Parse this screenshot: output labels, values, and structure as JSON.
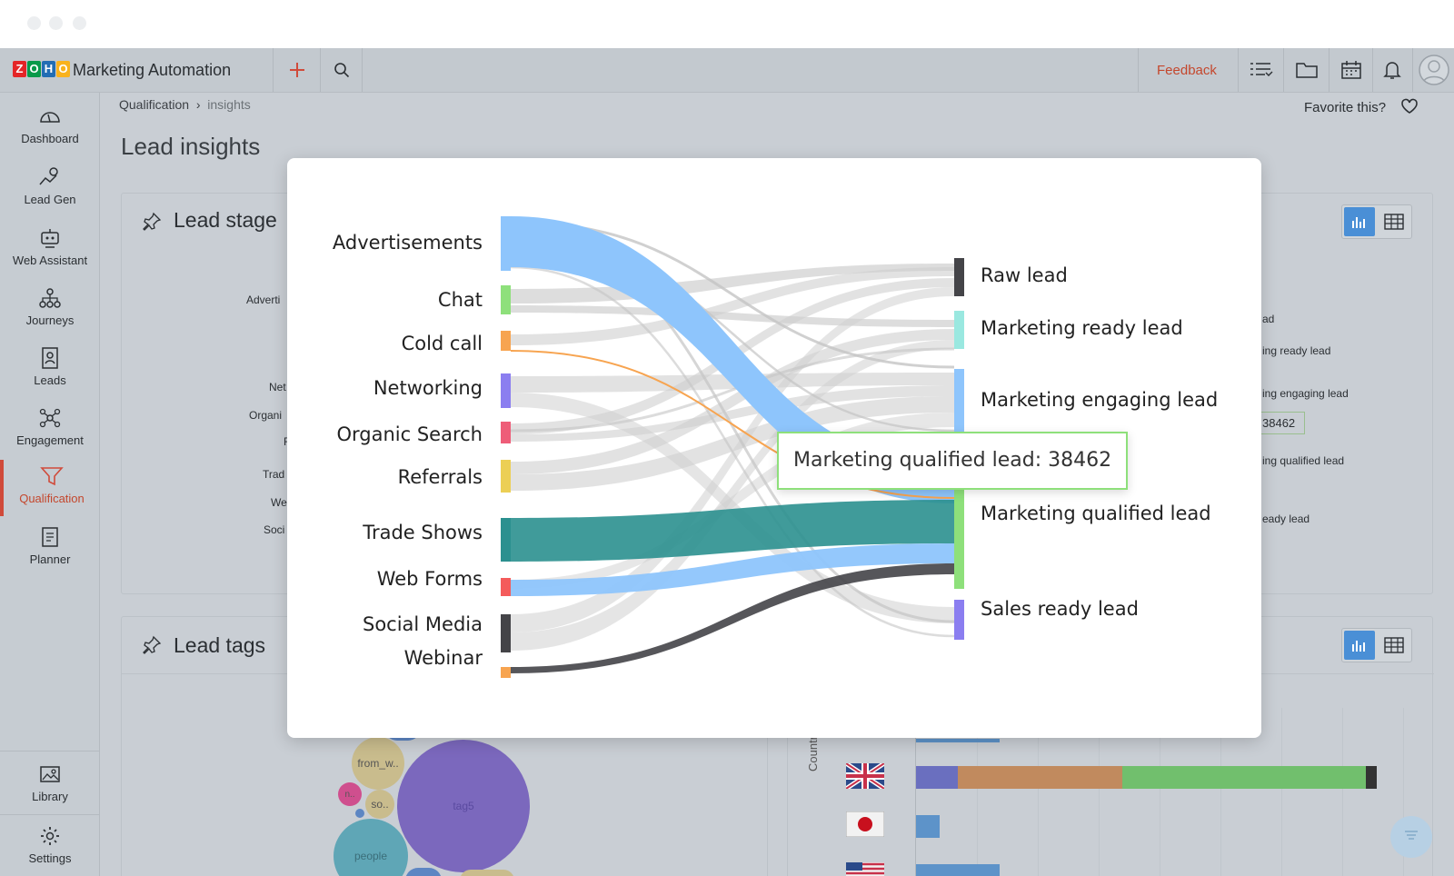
{
  "app": {
    "title": "Marketing Automation",
    "logo_letters": [
      "Z",
      "O",
      "H",
      "O"
    ],
    "logo_colors": [
      "#e42527",
      "#089949",
      "#226db4",
      "#f9b21d"
    ]
  },
  "topnav": {
    "feedback": "Feedback",
    "icons": [
      "plus-icon",
      "search-icon",
      "list-icon",
      "folder-icon",
      "calendar-icon",
      "bell-icon",
      "avatar"
    ]
  },
  "breadcrumb": {
    "parent": "Qualification",
    "current": "insights"
  },
  "favorite": {
    "label": "Favorite this?"
  },
  "page": {
    "title": "Lead insights"
  },
  "sidebar": {
    "items": [
      {
        "label": "Dashboard",
        "icon": "gauge-icon"
      },
      {
        "label": "Lead Gen",
        "icon": "lead-gen-icon"
      },
      {
        "label": "Web Assistant",
        "icon": "web-assistant-icon"
      },
      {
        "label": "Journeys",
        "icon": "journeys-icon"
      },
      {
        "label": "Leads",
        "icon": "contact-card-icon"
      },
      {
        "label": "Engagement",
        "icon": "engagement-icon"
      },
      {
        "label": "Qualification",
        "icon": "funnel-icon",
        "active": true
      },
      {
        "label": "Planner",
        "icon": "planner-icon"
      }
    ],
    "bottom": [
      {
        "label": "Library",
        "icon": "image-icon"
      },
      {
        "label": "Settings",
        "icon": "gear-icon"
      }
    ]
  },
  "cards": {
    "lead_stage": {
      "title_visible": "Lead stage",
      "left_labels": [
        "Adverti",
        "Net",
        "Organi",
        "F",
        "Trad",
        "We",
        "Soci"
      ],
      "right_labels": [
        "ad",
        "ing ready lead",
        "ing engaging lead",
        "38462",
        "ing qualified lead",
        "eady lead"
      ]
    },
    "lead_tags": {
      "title": "Lead tags",
      "bubbles": [
        {
          "label": "from_w..",
          "color": "#c7b98a"
        },
        {
          "label": "n..",
          "color": "#cf4f8e"
        },
        {
          "label": "so..",
          "color": "#c7b98a"
        },
        {
          "label": "tag5",
          "color": "#7b68bd"
        },
        {
          "label": "people",
          "color": "#4f9fb3"
        }
      ]
    },
    "countries": {
      "axis_label": "Countries",
      "flags": [
        "uk-flag-icon",
        "japan-flag-icon",
        "usa-flag-icon"
      ],
      "bar_colors": [
        "#6a6fbf",
        "#c18a5e",
        "#71bf6d",
        "#333333",
        "#5d93c9"
      ]
    }
  },
  "sankey": {
    "sources": [
      {
        "name": "Advertisements",
        "color": "#8ec5fc"
      },
      {
        "name": "Chat",
        "color": "#8ee07b"
      },
      {
        "name": "Cold call",
        "color": "#f7a450"
      },
      {
        "name": "Networking",
        "color": "#8b7ef0"
      },
      {
        "name": "Organic Search",
        "color": "#ee5d78"
      },
      {
        "name": "Referrals",
        "color": "#eccf55"
      },
      {
        "name": "Trade Shows",
        "color": "#2b908f"
      },
      {
        "name": "Web Forms",
        "color": "#f45b5b"
      },
      {
        "name": "Social Media",
        "color": "#444448"
      },
      {
        "name": "Webinar",
        "color": "#f7a450"
      }
    ],
    "targets": [
      {
        "name": "Raw lead",
        "color": "#444448"
      },
      {
        "name": "Marketing ready lead",
        "color": "#9ae8e0"
      },
      {
        "name": "Marketing engaging lead",
        "color": "#8ec5fc"
      },
      {
        "name": "Marketing qualified lead",
        "color": "#8ee07b"
      },
      {
        "name": "Sales ready lead",
        "color": "#8b7ef0"
      }
    ],
    "tooltip": {
      "label": "Marketing qualified lead",
      "value": "38462",
      "text": "Marketing qualified lead: 38462"
    }
  }
}
